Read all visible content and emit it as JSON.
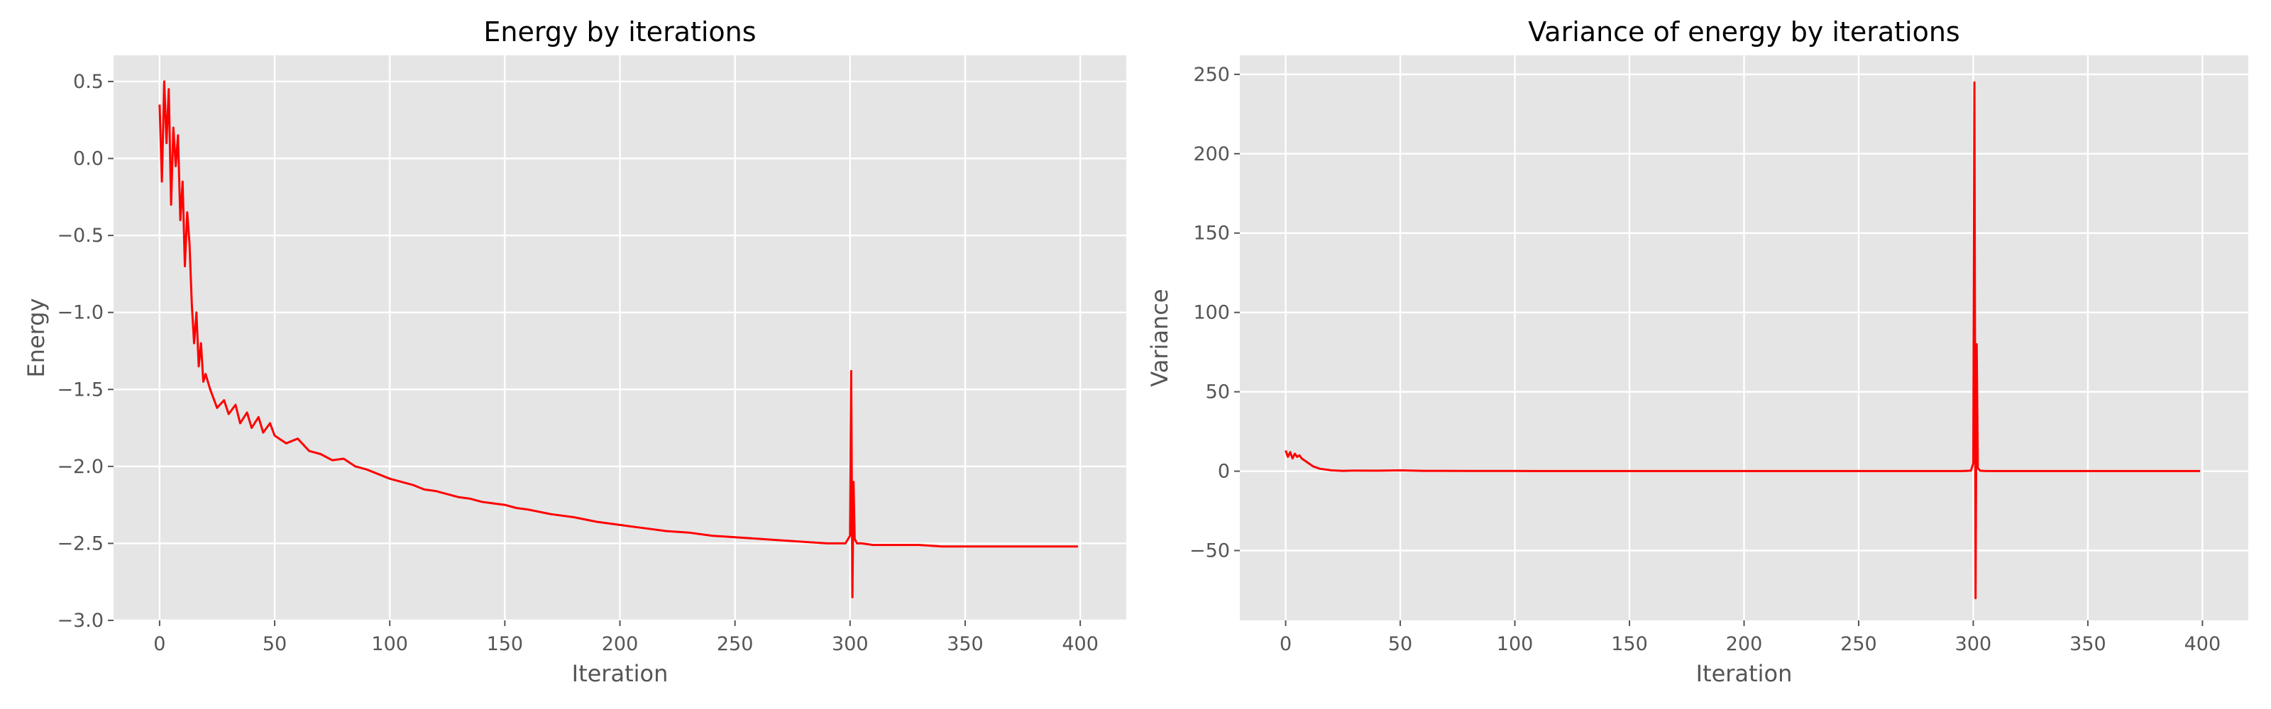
{
  "chart_data": [
    {
      "type": "line",
      "title": "Energy by iterations",
      "xlabel": "Iteration",
      "ylabel": "Energy",
      "xlim": [
        -20,
        420
      ],
      "ylim": [
        -3.0,
        0.67
      ],
      "xticks": [
        0,
        50,
        100,
        150,
        200,
        250,
        300,
        350,
        400
      ],
      "yticks": [
        -3.0,
        -2.5,
        -2.0,
        -1.5,
        -1.0,
        -0.5,
        0.0,
        0.5
      ],
      "ytick_labels": [
        "−3.0",
        "−2.5",
        "−2.0",
        "−1.5",
        "−1.0",
        "−0.5",
        "0.0",
        "0.5"
      ],
      "grid": true,
      "series": [
        {
          "color": "#ff0000",
          "x": [
            0,
            1,
            2,
            3,
            4,
            5,
            6,
            7,
            8,
            9,
            10,
            11,
            12,
            13,
            14,
            15,
            16,
            17,
            18,
            19,
            20,
            22,
            25,
            28,
            30,
            33,
            35,
            38,
            40,
            43,
            45,
            48,
            50,
            55,
            60,
            65,
            70,
            75,
            80,
            85,
            90,
            95,
            100,
            105,
            110,
            115,
            120,
            125,
            130,
            135,
            140,
            145,
            150,
            155,
            160,
            170,
            180,
            190,
            200,
            210,
            220,
            230,
            240,
            250,
            260,
            270,
            280,
            290,
            298,
            300,
            300.5,
            301,
            301.5,
            302,
            303,
            305,
            310,
            320,
            330,
            340,
            350,
            360,
            370,
            380,
            390,
            399
          ],
          "y": [
            0.35,
            -0.15,
            0.5,
            0.1,
            0.45,
            -0.3,
            0.2,
            -0.05,
            0.15,
            -0.4,
            -0.15,
            -0.7,
            -0.35,
            -0.55,
            -0.95,
            -1.2,
            -1.0,
            -1.35,
            -1.2,
            -1.45,
            -1.4,
            -1.5,
            -1.62,
            -1.57,
            -1.66,
            -1.6,
            -1.72,
            -1.65,
            -1.75,
            -1.68,
            -1.78,
            -1.72,
            -1.8,
            -1.85,
            -1.82,
            -1.9,
            -1.92,
            -1.96,
            -1.95,
            -2.0,
            -2.02,
            -2.05,
            -2.08,
            -2.1,
            -2.12,
            -2.15,
            -2.16,
            -2.18,
            -2.2,
            -2.21,
            -2.23,
            -2.24,
            -2.25,
            -2.27,
            -2.28,
            -2.31,
            -2.33,
            -2.36,
            -2.38,
            -2.4,
            -2.42,
            -2.43,
            -2.45,
            -2.46,
            -2.47,
            -2.48,
            -2.49,
            -2.5,
            -2.5,
            -2.45,
            -1.38,
            -2.85,
            -2.1,
            -2.47,
            -2.5,
            -2.5,
            -2.51,
            -2.51,
            -2.51,
            -2.52,
            -2.52,
            -2.52,
            -2.52,
            -2.52,
            -2.52,
            -2.52
          ]
        }
      ]
    },
    {
      "type": "line",
      "title": "Variance of energy by iterations",
      "xlabel": "Iteration",
      "ylabel": "Variance",
      "xlim": [
        -20,
        420
      ],
      "ylim": [
        -94,
        262
      ],
      "xticks": [
        0,
        50,
        100,
        150,
        200,
        250,
        300,
        350,
        400
      ],
      "yticks": [
        -50,
        0,
        50,
        100,
        150,
        200,
        250
      ],
      "ytick_labels": [
        "−50",
        "0",
        "50",
        "100",
        "150",
        "200",
        "250"
      ],
      "grid": true,
      "series": [
        {
          "color": "#ff0000",
          "x": [
            0,
            1,
            2,
            3,
            4,
            5,
            6,
            7,
            8,
            9,
            10,
            12,
            15,
            20,
            25,
            30,
            40,
            50,
            60,
            80,
            100,
            150,
            200,
            250,
            295,
            299,
            300,
            300.5,
            301,
            301.5,
            302,
            303,
            305,
            310,
            350,
            399
          ],
          "y": [
            13,
            9,
            12,
            8,
            11,
            9,
            10,
            8,
            7,
            6,
            5,
            3,
            1.5,
            0.5,
            0.2,
            0.4,
            0.3,
            0.5,
            0.2,
            0.1,
            0.1,
            0.05,
            0.05,
            0.05,
            0.05,
            0.3,
            5,
            245,
            -80,
            80,
            2,
            0.3,
            0.1,
            0.05,
            0.05,
            0.05
          ]
        }
      ]
    }
  ]
}
